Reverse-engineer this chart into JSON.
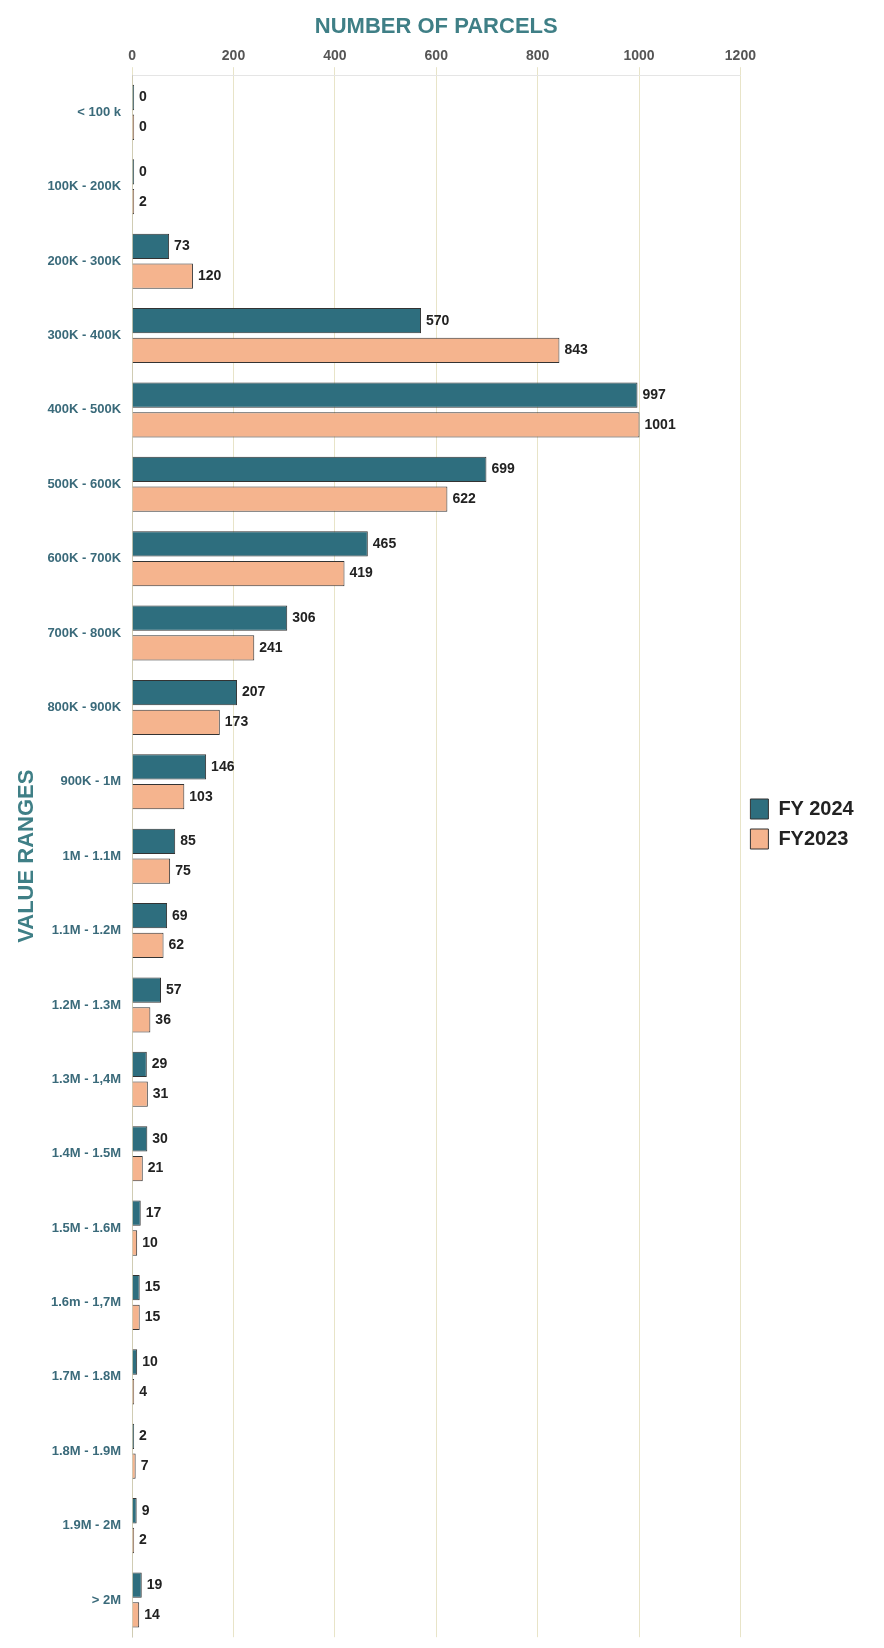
{
  "chart_data": {
    "type": "bar",
    "orientation": "horizontal",
    "xlabel": "NUMBER OF PARCELS",
    "ylabel": "VALUE RANGES",
    "categories": [
      "< 100 k",
      "100K - 200K",
      "200K - 300K",
      "300K - 400K",
      "400K - 500K",
      "500K - 600K",
      "600K - 700K",
      "700K - 800K",
      "800K - 900K",
      "900K - 1M",
      "1M - 1.1M",
      "1.1M - 1.2M",
      "1.2M - 1.3M",
      "1.3M - 1,4M",
      "1.4M - 1.5M",
      "1.5M - 1.6M",
      "1.6m - 1,7M",
      "1.7M - 1.8M",
      "1.8M - 1.9M",
      "1.9M - 2M",
      "> 2M"
    ],
    "series": [
      {
        "name": "FY 2024",
        "color": "#2e6e7e",
        "values": [
          0,
          0,
          73,
          570,
          997,
          699,
          465,
          306,
          207,
          146,
          85,
          69,
          57,
          29,
          30,
          17,
          15,
          10,
          2,
          9,
          19
        ]
      },
      {
        "name": "FY2023",
        "color": "#f5b48e",
        "values": [
          0,
          2,
          120,
          843,
          1001,
          622,
          419,
          241,
          173,
          103,
          75,
          62,
          36,
          31,
          21,
          10,
          15,
          4,
          7,
          2,
          14
        ]
      }
    ],
    "xlim": [
      0,
      1200
    ],
    "xticks": [
      0,
      200,
      400,
      600,
      800,
      1000,
      1200
    ],
    "grid": "x",
    "legend": "right",
    "data_labels": true
  }
}
